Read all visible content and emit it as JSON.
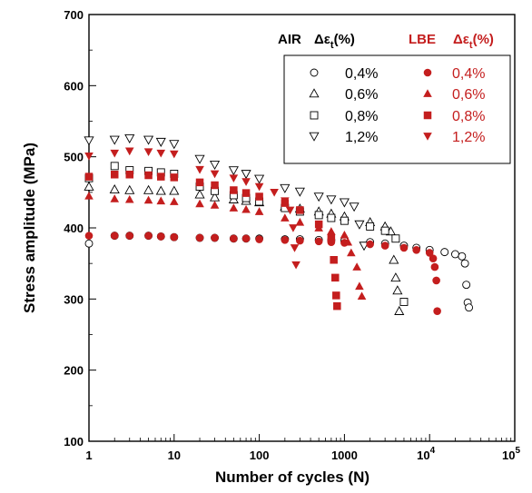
{
  "chart_data": {
    "type": "scatter",
    "xscale": "log",
    "xlim": [
      1,
      100000
    ],
    "ylim": [
      100,
      700
    ],
    "xlabel": "Number of cycles (N)",
    "ylabel": "Stress amplitude (MPa)",
    "xticks": [
      "1",
      "10",
      "100",
      "1000",
      "10",
      "10"
    ],
    "xtick_sups": [
      "",
      "",
      "",
      "",
      "4",
      "5"
    ],
    "yticks": [
      "100",
      "200",
      "300",
      "400",
      "500",
      "600",
      "700"
    ],
    "legend": {
      "placement": "top-right",
      "air_title": "AIR",
      "lbe_title": "LBE",
      "delta_label": "Δε",
      "delta_sub": "t",
      "delta_unit": "(%)",
      "entries": [
        "0,4%",
        "0,6%",
        "0,8%",
        "1,2%"
      ]
    },
    "colors": {
      "air": "#000000",
      "lbe": "#c41e1e"
    },
    "series": [
      {
        "name": "AIR 0,4%",
        "environment": "AIR",
        "marker": "circle-open",
        "color": "#000000",
        "points": [
          [
            1,
            378
          ],
          [
            2,
            389
          ],
          [
            3,
            389
          ],
          [
            5,
            389
          ],
          [
            7,
            388
          ],
          [
            10,
            387
          ],
          [
            20,
            386
          ],
          [
            30,
            386
          ],
          [
            50,
            385
          ],
          [
            70,
            385
          ],
          [
            100,
            385
          ],
          [
            200,
            384
          ],
          [
            300,
            384
          ],
          [
            500,
            383
          ],
          [
            700,
            383
          ],
          [
            1000,
            382
          ],
          [
            2000,
            380
          ],
          [
            3000,
            378
          ],
          [
            5000,
            375
          ],
          [
            7000,
            372
          ],
          [
            10000,
            369
          ],
          [
            15000,
            366
          ],
          [
            20000,
            363
          ],
          [
            24000,
            360
          ],
          [
            26000,
            350
          ],
          [
            27000,
            320
          ],
          [
            28000,
            295
          ],
          [
            29000,
            288
          ]
        ]
      },
      {
        "name": "AIR 0,6%",
        "environment": "AIR",
        "marker": "triangle-up-open",
        "color": "#000000",
        "points": [
          [
            1,
            458
          ],
          [
            2,
            454
          ],
          [
            3,
            453
          ],
          [
            5,
            453
          ],
          [
            7,
            452
          ],
          [
            10,
            452
          ],
          [
            20,
            447
          ],
          [
            30,
            443
          ],
          [
            50,
            440
          ],
          [
            70,
            438
          ],
          [
            100,
            436
          ],
          [
            200,
            430
          ],
          [
            300,
            427
          ],
          [
            500,
            423
          ],
          [
            700,
            420
          ],
          [
            1000,
            416
          ],
          [
            2000,
            408
          ],
          [
            3000,
            402
          ],
          [
            3500,
            395
          ],
          [
            3800,
            355
          ],
          [
            4000,
            330
          ],
          [
            4200,
            312
          ],
          [
            4400,
            283
          ]
        ]
      },
      {
        "name": "AIR 0,8%",
        "environment": "AIR",
        "marker": "square-open",
        "color": "#000000",
        "points": [
          [
            1,
            470
          ],
          [
            2,
            487
          ],
          [
            3,
            481
          ],
          [
            5,
            480
          ],
          [
            7,
            478
          ],
          [
            10,
            476
          ],
          [
            20,
            458
          ],
          [
            30,
            452
          ],
          [
            50,
            446
          ],
          [
            70,
            442
          ],
          [
            100,
            437
          ],
          [
            200,
            428
          ],
          [
            300,
            423
          ],
          [
            500,
            418
          ],
          [
            700,
            414
          ],
          [
            1000,
            410
          ],
          [
            2000,
            402
          ],
          [
            3000,
            396
          ],
          [
            4000,
            385
          ],
          [
            5000,
            296
          ]
        ]
      },
      {
        "name": "AIR 1,2%",
        "environment": "AIR",
        "marker": "triangle-down-open",
        "color": "#000000",
        "points": [
          [
            1,
            523
          ],
          [
            2,
            524
          ],
          [
            3,
            526
          ],
          [
            5,
            524
          ],
          [
            7,
            521
          ],
          [
            10,
            518
          ],
          [
            20,
            497
          ],
          [
            30,
            489
          ],
          [
            50,
            481
          ],
          [
            70,
            476
          ],
          [
            100,
            469
          ],
          [
            200,
            456
          ],
          [
            300,
            451
          ],
          [
            500,
            444
          ],
          [
            700,
            440
          ],
          [
            1000,
            436
          ],
          [
            1300,
            430
          ],
          [
            1500,
            405
          ],
          [
            1700,
            375
          ]
        ]
      },
      {
        "name": "LBE 0,4%",
        "environment": "LBE",
        "marker": "circle-filled",
        "color": "#c41e1e",
        "points": [
          [
            1,
            389
          ],
          [
            2,
            389
          ],
          [
            3,
            389
          ],
          [
            5,
            389
          ],
          [
            7,
            388
          ],
          [
            10,
            387
          ],
          [
            20,
            386
          ],
          [
            30,
            386
          ],
          [
            50,
            385
          ],
          [
            70,
            385
          ],
          [
            100,
            384
          ],
          [
            200,
            383
          ],
          [
            300,
            382
          ],
          [
            500,
            381
          ],
          [
            700,
            380
          ],
          [
            1000,
            379
          ],
          [
            2000,
            377
          ],
          [
            3000,
            375
          ],
          [
            5000,
            372
          ],
          [
            7000,
            369
          ],
          [
            10000,
            365
          ],
          [
            11000,
            357
          ],
          [
            11500,
            345
          ],
          [
            12000,
            326
          ],
          [
            12300,
            283
          ]
        ]
      },
      {
        "name": "LBE 0,6%",
        "environment": "LBE",
        "marker": "triangle-up-filled",
        "color": "#c41e1e",
        "points": [
          [
            1,
            445
          ],
          [
            2,
            441
          ],
          [
            3,
            440
          ],
          [
            5,
            439
          ],
          [
            7,
            438
          ],
          [
            10,
            437
          ],
          [
            20,
            434
          ],
          [
            30,
            432
          ],
          [
            50,
            428
          ],
          [
            70,
            426
          ],
          [
            100,
            423
          ],
          [
            200,
            414
          ],
          [
            300,
            408
          ],
          [
            500,
            400
          ],
          [
            700,
            395
          ],
          [
            1000,
            390
          ],
          [
            1100,
            380
          ],
          [
            1200,
            365
          ],
          [
            1400,
            345
          ],
          [
            1500,
            318
          ],
          [
            1600,
            304
          ]
        ]
      },
      {
        "name": "LBE 0,8%",
        "environment": "LBE",
        "marker": "square-filled",
        "color": "#c41e1e",
        "points": [
          [
            1,
            472
          ],
          [
            2,
            475
          ],
          [
            3,
            475
          ],
          [
            5,
            474
          ],
          [
            7,
            472
          ],
          [
            10,
            471
          ],
          [
            20,
            464
          ],
          [
            30,
            460
          ],
          [
            50,
            453
          ],
          [
            70,
            449
          ],
          [
            100,
            444
          ],
          [
            200,
            435
          ],
          [
            300,
            425
          ],
          [
            500,
            405
          ],
          [
            700,
            385
          ],
          [
            750,
            355
          ],
          [
            780,
            330
          ],
          [
            800,
            305
          ],
          [
            820,
            290
          ]
        ]
      },
      {
        "name": "LBE 1,2%",
        "environment": "LBE",
        "marker": "triangle-down-filled",
        "color": "#c41e1e",
        "points": [
          [
            1,
            501
          ],
          [
            2,
            505
          ],
          [
            3,
            508
          ],
          [
            5,
            507
          ],
          [
            7,
            505
          ],
          [
            10,
            504
          ],
          [
            20,
            482
          ],
          [
            30,
            476
          ],
          [
            50,
            470
          ],
          [
            70,
            465
          ],
          [
            100,
            458
          ],
          [
            150,
            450
          ],
          [
            200,
            438
          ],
          [
            230,
            425
          ],
          [
            250,
            400
          ],
          [
            260,
            372
          ],
          [
            270,
            348
          ]
        ]
      }
    ]
  }
}
